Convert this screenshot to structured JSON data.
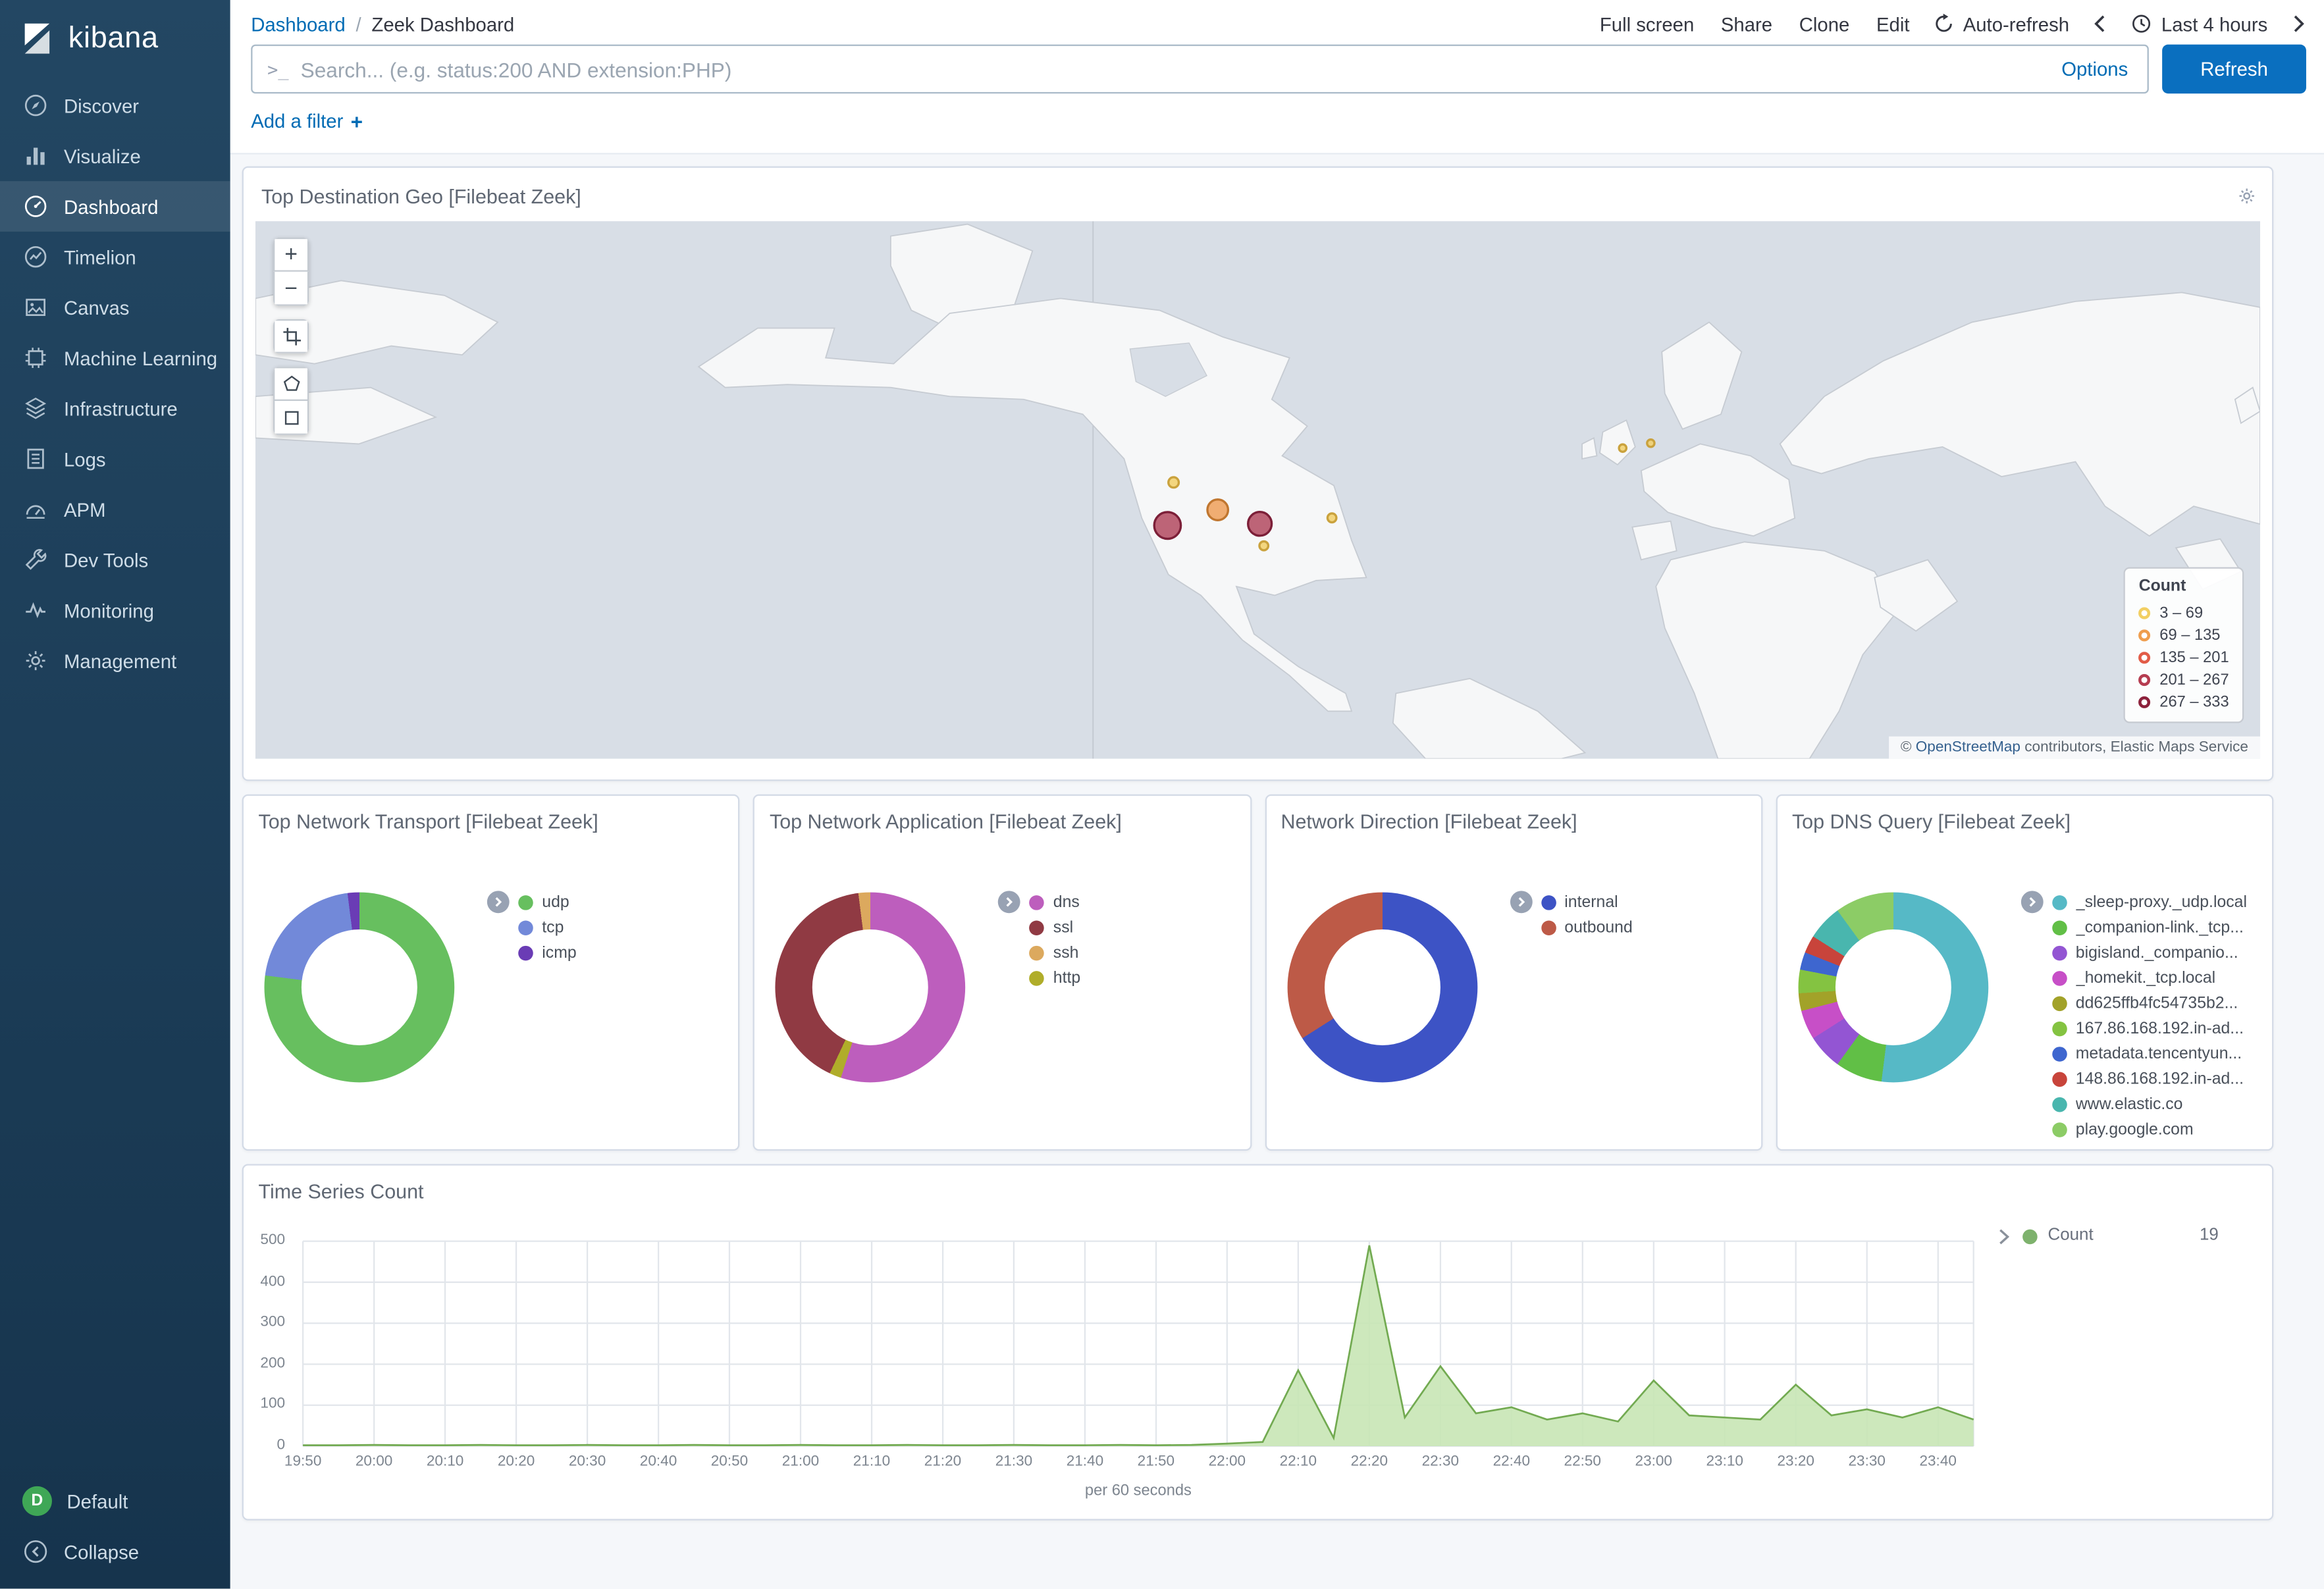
{
  "brand": {
    "name": "kibana"
  },
  "sidebar": {
    "items": [
      {
        "label": "Discover",
        "icon": "discover-icon",
        "active": false
      },
      {
        "label": "Visualize",
        "icon": "visualize-icon",
        "active": false
      },
      {
        "label": "Dashboard",
        "icon": "dashboard-icon",
        "active": true
      },
      {
        "label": "Timelion",
        "icon": "timelion-icon",
        "active": false
      },
      {
        "label": "Canvas",
        "icon": "canvas-icon",
        "active": false
      },
      {
        "label": "Machine Learning",
        "icon": "machine-learning-icon",
        "active": false
      },
      {
        "label": "Infrastructure",
        "icon": "infrastructure-icon",
        "active": false
      },
      {
        "label": "Logs",
        "icon": "logs-icon",
        "active": false
      },
      {
        "label": "APM",
        "icon": "apm-icon",
        "active": false
      },
      {
        "label": "Dev Tools",
        "icon": "dev-tools-icon",
        "active": false
      },
      {
        "label": "Monitoring",
        "icon": "monitoring-icon",
        "active": false
      },
      {
        "label": "Management",
        "icon": "management-icon",
        "active": false
      }
    ],
    "space": {
      "avatar": "D",
      "label": "Default",
      "avatar_color": "#3fa756"
    },
    "collapse_label": "Collapse"
  },
  "topnav": {
    "breadcrumb_root": "Dashboard",
    "breadcrumb_separator": "/",
    "breadcrumb_current": "Zeek Dashboard",
    "actions": [
      "Full screen",
      "Share",
      "Clone",
      "Edit"
    ],
    "auto_refresh_label": "Auto-refresh",
    "time_range_label": "Last 4 hours"
  },
  "query_bar": {
    "prompt": ">_",
    "placeholder": "Search... (e.g. status:200 AND extension:PHP)",
    "options_label": "Options",
    "refresh_label": "Refresh"
  },
  "filter_bar": {
    "add_filter_label": "Add a filter",
    "add_icon": "+"
  },
  "panels": {
    "geo": {
      "title": "Top Destination Geo [Filebeat Zeek]",
      "controls": {
        "zoom_in": "+",
        "zoom_out": "−"
      },
      "legend_title": "Count",
      "legend": [
        {
          "label": "3 – 69",
          "color": "#f2cf63"
        },
        {
          "label": "69 – 135",
          "color": "#ef9e4f"
        },
        {
          "label": "135 – 201",
          "color": "#e25c47"
        },
        {
          "label": "201 – 267",
          "color": "#b53c50"
        },
        {
          "label": "267 – 333",
          "color": "#8c213b"
        }
      ],
      "markers": [
        {
          "x": 45.5,
          "y": 56.6,
          "r": 9,
          "fill": "#b34a60",
          "stroke": "#7c1f38"
        },
        {
          "x": 48.0,
          "y": 53.7,
          "r": 7,
          "fill": "#efa05b",
          "stroke": "#c0762f"
        },
        {
          "x": 50.1,
          "y": 56.3,
          "r": 8,
          "fill": "#b34a60",
          "stroke": "#7c1f38"
        },
        {
          "x": 45.8,
          "y": 48.6,
          "r": 3.5,
          "fill": "#f2d06a",
          "stroke": "#caa23d"
        },
        {
          "x": 50.3,
          "y": 60.4,
          "r": 3,
          "fill": "#f2d06a",
          "stroke": "#caa23d"
        },
        {
          "x": 53.7,
          "y": 55.2,
          "r": 3,
          "fill": "#f2d06a",
          "stroke": "#caa23d"
        },
        {
          "x": 68.2,
          "y": 42.2,
          "r": 2.5,
          "fill": "#f2d06a",
          "stroke": "#caa23d"
        },
        {
          "x": 69.6,
          "y": 41.3,
          "r": 2.5,
          "fill": "#f2d06a",
          "stroke": "#caa23d"
        }
      ],
      "attribution": {
        "prefix": "© ",
        "link": "OpenStreetMap",
        "suffix": " contributors, Elastic Maps Service"
      }
    }
  },
  "chart_data": [
    {
      "id": "top-network-transport",
      "type": "pie",
      "title": "Top Network Transport [Filebeat Zeek]",
      "segments": [
        {
          "label": "udp",
          "value": 77,
          "color": "#67bf5f"
        },
        {
          "label": "tcp",
          "value": 21,
          "color": "#7289d9"
        },
        {
          "label": "icmp",
          "value": 2,
          "color": "#6a3cb5"
        }
      ],
      "legend": [
        "udp",
        "tcp",
        "icmp"
      ]
    },
    {
      "id": "top-network-application",
      "type": "pie",
      "title": "Top Network Application [Filebeat Zeek]",
      "segments": [
        {
          "label": "dns",
          "value": 55,
          "color": "#bd5ebd"
        },
        {
          "label": "http",
          "value": 2,
          "color": "#b0ad2a"
        },
        {
          "label": "ssl",
          "value": 41,
          "color": "#903a43"
        },
        {
          "label": "ssh",
          "value": 2,
          "color": "#dca95e"
        }
      ],
      "legend": [
        "dns",
        "ssl",
        "ssh",
        "http"
      ]
    },
    {
      "id": "network-direction",
      "type": "pie",
      "title": "Network Direction [Filebeat Zeek]",
      "segments": [
        {
          "label": "internal",
          "value": 66,
          "color": "#3d53c5"
        },
        {
          "label": "outbound",
          "value": 34,
          "color": "#bd5a47"
        }
      ],
      "legend": [
        "internal",
        "outbound"
      ]
    },
    {
      "id": "top-dns-query",
      "type": "pie",
      "title": "Top DNS Query [Filebeat Zeek]",
      "segments": [
        {
          "label": "_sleep-proxy._udp.local",
          "value": 52,
          "color": "#56b9c6"
        },
        {
          "label": "_companion-link._tcp...",
          "value": 8,
          "color": "#61bf46"
        },
        {
          "label": "bigisland._companio...",
          "value": 6,
          "color": "#9355d3"
        },
        {
          "label": "_homekit._tcp.local",
          "value": 5,
          "color": "#c74fc7"
        },
        {
          "label": "dd625ffb4fc54735b2...",
          "value": 3,
          "color": "#a2a229"
        },
        {
          "label": "167.86.168.192.in-ad...",
          "value": 4,
          "color": "#84c341"
        },
        {
          "label": "metadata.tencentyun...",
          "value": 3,
          "color": "#3e66cf"
        },
        {
          "label": "148.86.168.192.in-ad...",
          "value": 3,
          "color": "#c8443b"
        },
        {
          "label": "www.elastic.co",
          "value": 6,
          "color": "#49b6ae"
        },
        {
          "label": "play.google.com",
          "value": 10,
          "color": "#8ccc66"
        }
      ],
      "legend": [
        "_sleep-proxy._udp.local",
        "_companion-link._tcp...",
        "bigisland._companio...",
        "_homekit._tcp.local",
        "dd625ffb4fc54735b2...",
        "167.86.168.192.in-ad...",
        "metadata.tencentyun...",
        "148.86.168.192.in-ad...",
        "www.elastic.co",
        "play.google.com"
      ]
    },
    {
      "id": "time-series-count",
      "type": "area",
      "title": "Time Series Count",
      "x_start": "19:50",
      "interval_minutes": 5,
      "values": [
        2,
        2,
        3,
        2,
        2,
        3,
        2,
        2,
        3,
        2,
        2,
        3,
        2,
        2,
        3,
        2,
        2,
        3,
        2,
        2,
        3,
        2,
        2,
        3,
        2,
        3,
        6,
        10,
        185,
        20,
        490,
        70,
        195,
        80,
        95,
        65,
        80,
        60,
        160,
        75,
        70,
        65,
        150,
        75,
        90,
        70,
        95,
        65
      ],
      "x_ticks": [
        "19:50",
        "20:00",
        "20:10",
        "20:20",
        "20:30",
        "20:40",
        "20:50",
        "21:00",
        "21:10",
        "21:20",
        "21:30",
        "21:40",
        "21:50",
        "22:00",
        "22:10",
        "22:20",
        "22:30",
        "22:40",
        "22:50",
        "23:00",
        "23:10",
        "23:20",
        "23:30",
        "23:40"
      ],
      "y_ticks": [
        0,
        100,
        200,
        300,
        400,
        500
      ],
      "ylim": [
        0,
        500
      ],
      "xlabel": "per 60 seconds",
      "fill_color": "#c8e6b5",
      "line_color": "#72aa51",
      "legend": {
        "name": "Count",
        "value": 19,
        "dot_color": "#7eb26d"
      }
    }
  ]
}
